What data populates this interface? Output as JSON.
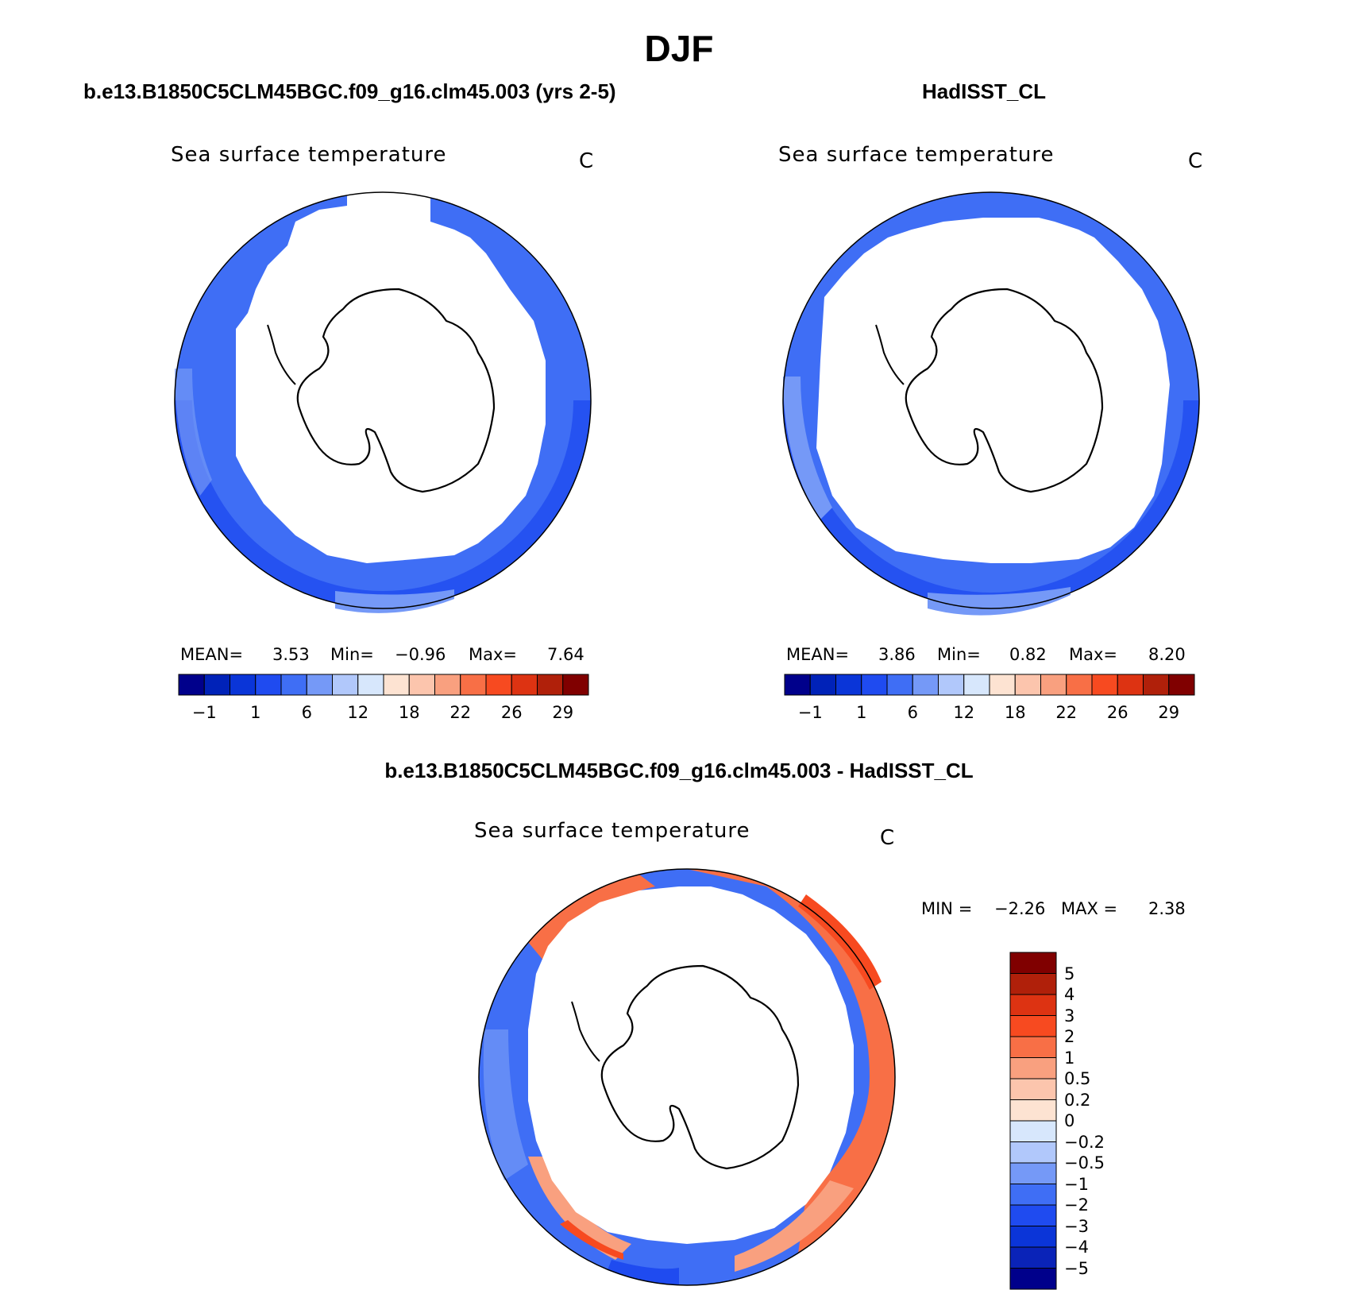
{
  "title": "DJF",
  "panels": [
    {
      "heading": "b.e13.B1850C5CLM45BGC.f09_g16.clm45.003 (yrs 2-5)",
      "variable": "Sea surface temperature",
      "units": "C",
      "stats": {
        "mean_label": "MEAN=",
        "mean": "3.53",
        "min_label": "Min=",
        "min": "−0.96",
        "max_label": "Max=",
        "max": "7.64"
      }
    },
    {
      "heading": "HadISST_CL",
      "variable": "Sea surface temperature",
      "units": "C",
      "stats": {
        "mean_label": "MEAN=",
        "mean": "3.86",
        "min_label": "Min=",
        "min": "0.82",
        "max_label": "Max=",
        "max": "8.20"
      }
    },
    {
      "heading": "b.e13.B1850C5CLM45BGC.f09_g16.clm45.003 - HadISST_CL",
      "variable": "Sea surface temperature",
      "units": "C",
      "stats": {
        "min_label": "MIN =",
        "min": "−2.26",
        "max_label": "MAX =",
        "max": "2.38"
      }
    }
  ],
  "colorbar_abs": {
    "colors": [
      "#00008b",
      "#0022b8",
      "#0a35d8",
      "#1f4bf0",
      "#3f6ef5",
      "#7599f7",
      "#b1c8fb",
      "#d7e7fc",
      "#fde3d2",
      "#fcc5ad",
      "#f9a07f",
      "#f86f46",
      "#f74a20",
      "#dd3312",
      "#b0200a",
      "#800000"
    ],
    "labels": [
      "−1",
      "1",
      "6",
      "12",
      "18",
      "22",
      "26",
      "29"
    ]
  },
  "colorbar_diff": {
    "colors": [
      "#00008b",
      "#0a23b8",
      "#0b35d8",
      "#1f4bf0",
      "#3f6ef5",
      "#7599f7",
      "#b1c8fb",
      "#d7e7fc",
      "#fde3d2",
      "#fcc5ad",
      "#f9a07f",
      "#f86f46",
      "#f74a20",
      "#dd3312",
      "#b0200a",
      "#800000"
    ],
    "labels": [
      "−5",
      "−4",
      "−3",
      "−2",
      "−1",
      "−0.5",
      "−0.2",
      "0",
      "0.2",
      "0.5",
      "1",
      "2",
      "3",
      "4",
      "5"
    ]
  }
}
